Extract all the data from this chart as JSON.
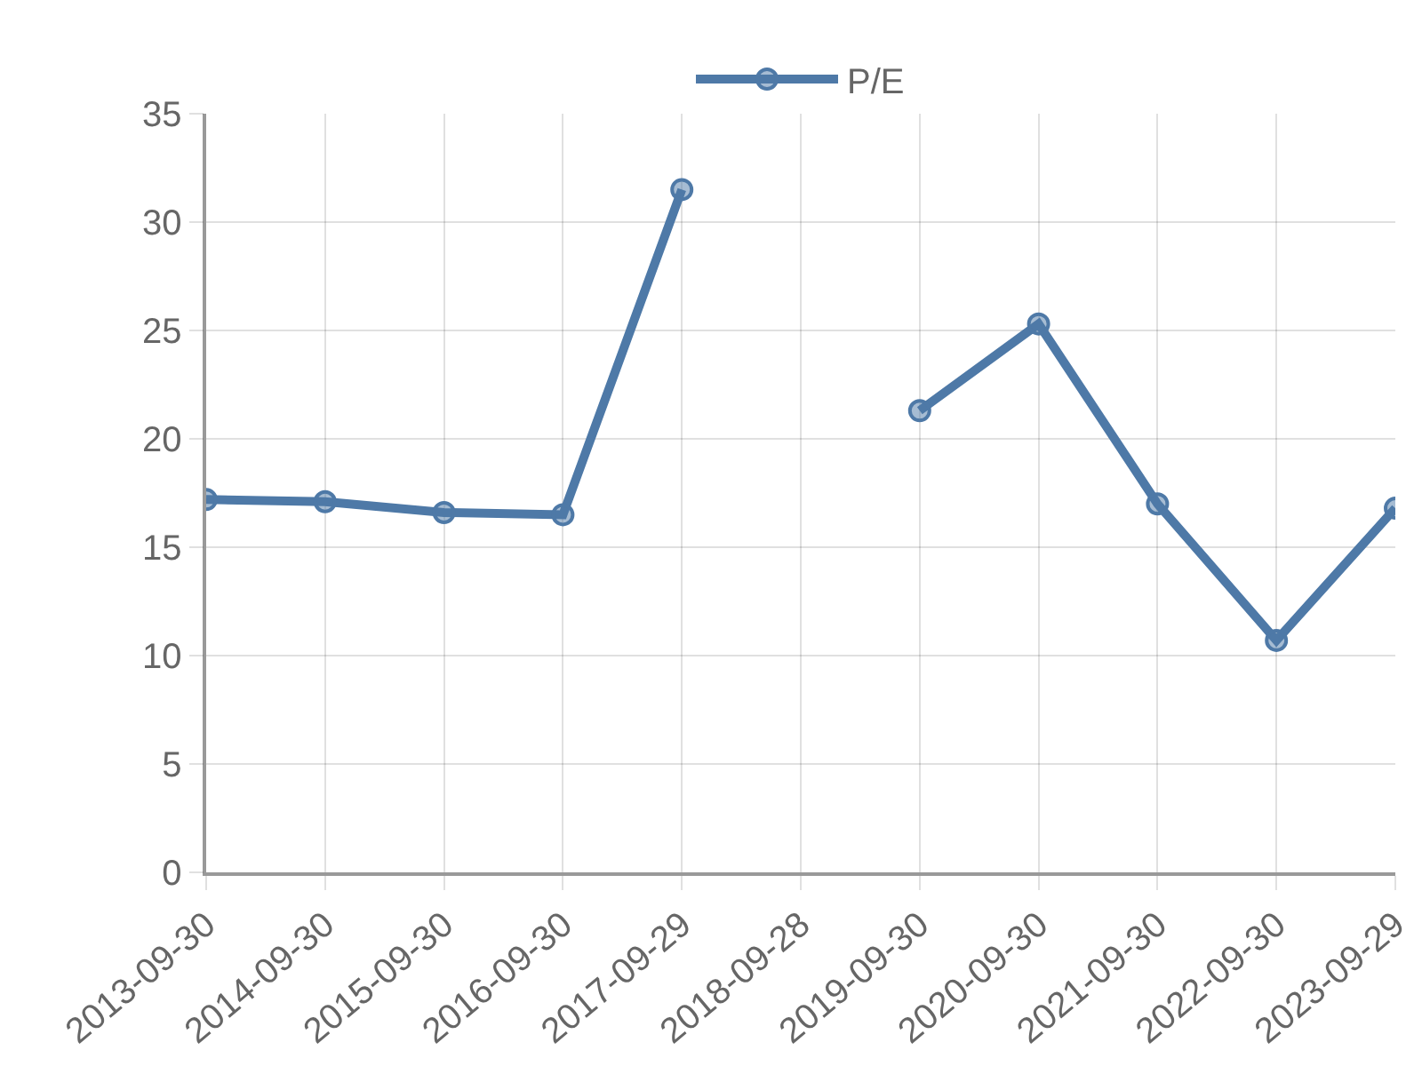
{
  "chart_data": {
    "type": "line",
    "categories": [
      "2013-09-30",
      "2014-09-30",
      "2015-09-30",
      "2016-09-30",
      "2017-09-29",
      "2018-09-28",
      "2019-09-30",
      "2020-09-30",
      "2021-09-30",
      "2022-09-30",
      "2023-09-29"
    ],
    "series": [
      {
        "name": "P/E",
        "color": "#4e79a7",
        "values": [
          17.2,
          17.1,
          16.6,
          16.5,
          31.5,
          null,
          21.3,
          25.3,
          17.0,
          10.7,
          16.8
        ]
      }
    ],
    "ylim": [
      0,
      35
    ],
    "yticks": [
      0,
      5,
      10,
      15,
      20,
      25,
      30,
      35
    ],
    "grid": true,
    "legend": "top",
    "marker": "circle",
    "line_style": "solid"
  }
}
